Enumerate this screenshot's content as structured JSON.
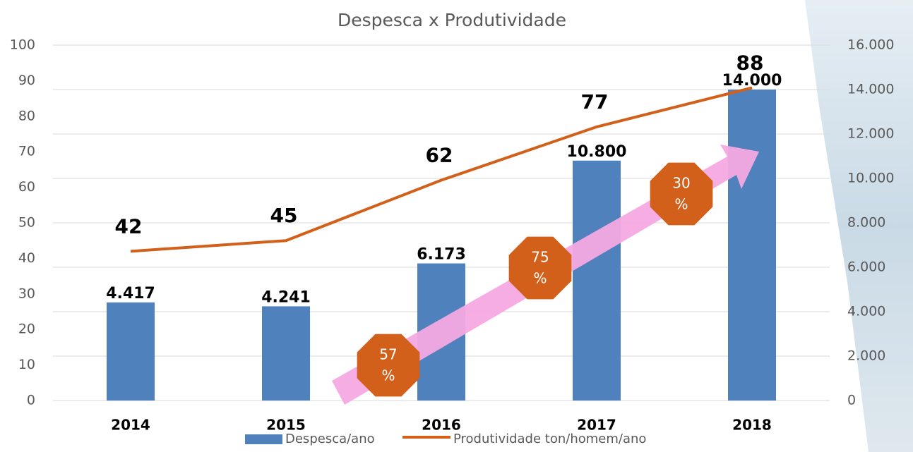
{
  "chart_data": {
    "type": "combo",
    "title": "Despesca x Produtividade",
    "categories": [
      "2014",
      "2015",
      "2016",
      "2017",
      "2018"
    ],
    "series": [
      {
        "name": "Despesca/ano",
        "type": "bar",
        "axis": "y2",
        "color": "#4f81bd",
        "values": [
          4417,
          4241,
          6173,
          10800,
          14000
        ],
        "value_labels": [
          "4.417",
          "4.241",
          "6.173",
          "10.800",
          "14.000"
        ]
      },
      {
        "name": "Produtividade ton/homem/ano",
        "type": "line",
        "axis": "y",
        "color": "#d2601a",
        "values": [
          42,
          45,
          62,
          77,
          88
        ]
      }
    ],
    "ylim": [
      0,
      100
    ],
    "yticks": [
      0,
      10,
      20,
      30,
      40,
      50,
      60,
      70,
      80,
      90,
      100
    ],
    "y2lim": [
      0,
      16000
    ],
    "y2ticks": [
      0,
      {
        "value": 2000,
        "label": "2.000"
      },
      {
        "value": 4000,
        "label": "4.000"
      },
      {
        "value": 6000,
        "label": "6.000"
      },
      {
        "value": 8000,
        "label": "8.000"
      },
      {
        "value": 10000,
        "label": "10.000"
      },
      {
        "value": 12000,
        "label": "12.000"
      },
      {
        "value": 14000,
        "label": "14.000"
      },
      {
        "value": 16000,
        "label": "16.000"
      }
    ],
    "grid": true,
    "annotations": [
      [
        "57",
        "%"
      ],
      [
        "75",
        "%"
      ],
      [
        "30",
        "%"
      ]
    ]
  }
}
